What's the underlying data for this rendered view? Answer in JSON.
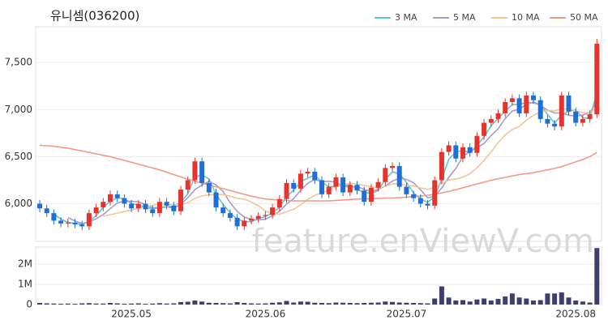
{
  "chart_data": [
    {
      "type": "candlestick",
      "title": "유니셈(036200)",
      "watermark": "feature.enViewV.com",
      "up_color": "#e8332c",
      "down_color": "#1f6fd6",
      "legend": "top-right",
      "grid": true,
      "open": [
        6000,
        5950,
        5900,
        5820,
        5790,
        5800,
        5780,
        5760,
        5900,
        5960,
        6020,
        6100,
        6060,
        6000,
        5950,
        6000,
        5940,
        5900,
        6020,
        5980,
        5920,
        6150,
        6250,
        6450,
        6220,
        6120,
        5960,
        5900,
        5850,
        5760,
        5820,
        5840,
        5870,
        5880,
        5960,
        6050,
        6220,
        6160,
        6320,
        6340,
        6250,
        6100,
        6180,
        6280,
        6120,
        6200,
        6140,
        6020,
        6170,
        6230,
        6380,
        6400,
        6180,
        6100,
        6060,
        6000,
        5980,
        6250,
        6550,
        6620,
        6480,
        6600,
        6540,
        6720,
        6860,
        6900,
        6960,
        7080,
        7120,
        6960,
        7150,
        7100,
        6900,
        6850,
        6820,
        7150,
        6980,
        6860,
        6900,
        6950
      ],
      "high": [
        6040,
        5990,
        5940,
        5860,
        5840,
        5840,
        5820,
        5940,
        6000,
        6060,
        6140,
        6140,
        6100,
        6040,
        6040,
        6040,
        5980,
        6060,
        6060,
        6020,
        6190,
        6290,
        6490,
        6490,
        6260,
        6160,
        6000,
        5940,
        5890,
        5860,
        5880,
        5910,
        5920,
        6000,
        6090,
        6260,
        6260,
        6360,
        6380,
        6380,
        6290,
        6220,
        6320,
        6320,
        6240,
        6240,
        6180,
        6210,
        6270,
        6420,
        6440,
        6440,
        6220,
        6140,
        6100,
        6040,
        6290,
        6590,
        6660,
        6660,
        6640,
        6640,
        6760,
        6900,
        6940,
        7000,
        7120,
        7160,
        7160,
        7190,
        7190,
        7140,
        6940,
        6890,
        7190,
        7190,
        7020,
        6940,
        6990,
        7750
      ],
      "low": [
        5910,
        5860,
        5780,
        5750,
        5750,
        5740,
        5720,
        5720,
        5860,
        5920,
        5980,
        6020,
        5960,
        5910,
        5910,
        5900,
        5860,
        5860,
        5940,
        5880,
        5880,
        6110,
        6210,
        6180,
        6080,
        5920,
        5860,
        5810,
        5720,
        5720,
        5780,
        5800,
        5830,
        5840,
        5920,
        6010,
        6120,
        6120,
        6280,
        6210,
        6060,
        6060,
        6140,
        6080,
        6080,
        6100,
        5980,
        5980,
        6130,
        6190,
        6340,
        6140,
        6060,
        6020,
        5960,
        5940,
        5940,
        6210,
        6510,
        6440,
        6440,
        6500,
        6500,
        6680,
        6820,
        6860,
        6920,
        7040,
        6920,
        6920,
        7060,
        6860,
        6810,
        6780,
        6780,
        6940,
        6820,
        6820,
        6860,
        6910
      ],
      "close": [
        5950,
        5900,
        5820,
        5790,
        5800,
        5780,
        5760,
        5900,
        5960,
        6020,
        6100,
        6060,
        6000,
        5950,
        6000,
        5940,
        5900,
        6020,
        5980,
        5920,
        6150,
        6250,
        6450,
        6220,
        6120,
        5960,
        5900,
        5850,
        5760,
        5820,
        5840,
        5870,
        5880,
        5960,
        6050,
        6220,
        6160,
        6320,
        6340,
        6250,
        6100,
        6180,
        6280,
        6120,
        6200,
        6140,
        6020,
        6170,
        6230,
        6380,
        6400,
        6180,
        6100,
        6060,
        6000,
        5980,
        6250,
        6550,
        6620,
        6480,
        6600,
        6540,
        6720,
        6860,
        6900,
        6960,
        7080,
        7120,
        6960,
        7150,
        7100,
        6900,
        6850,
        6820,
        7150,
        6980,
        6860,
        6900,
        6950,
        7700
      ],
      "series": [
        {
          "name": "3 MA",
          "color": "#63c6cf",
          "values": [
            null,
            null,
            5890,
            5837,
            5803,
            5790,
            5780,
            5813,
            5873,
            5960,
            6027,
            6060,
            6053,
            6003,
            5983,
            5963,
            5947,
            5953,
            5967,
            5973,
            6017,
            6107,
            6283,
            6307,
            6263,
            6100,
            5993,
            5903,
            5837,
            5810,
            5807,
            5843,
            5863,
            5903,
            5963,
            6077,
            6143,
            6233,
            6273,
            6303,
            6230,
            6177,
            6187,
            6193,
            6200,
            6153,
            6120,
            6110,
            6140,
            6260,
            6337,
            6320,
            6227,
            6113,
            6053,
            6013,
            6077,
            6260,
            6473,
            6550,
            6567,
            6540,
            6620,
            6707,
            6827,
            6907,
            6980,
            7053,
            7053,
            7077,
            7070,
            7050,
            6950,
            6857,
            6940,
            6983,
            6997,
            6913,
            6903,
            7183
          ]
        },
        {
          "name": "5 MA",
          "color": "#a99ad2",
          "values": [
            null,
            null,
            null,
            null,
            5852,
            5818,
            5790,
            5806,
            5840,
            5884,
            5948,
            6008,
            6028,
            6026,
            6022,
            5990,
            5958,
            5962,
            5968,
            5952,
            5994,
            6064,
            6150,
            6198,
            6238,
            6200,
            6130,
            6010,
            5918,
            5858,
            5834,
            5828,
            5834,
            5874,
            5920,
            5996,
            6054,
            6142,
            6218,
            6258,
            6234,
            6238,
            6230,
            6186,
            6176,
            6184,
            6152,
            6130,
            6152,
            6188,
            6240,
            6272,
            6258,
            6224,
            6148,
            6064,
            6078,
            6168,
            6280,
            6376,
            6500,
            6558,
            6592,
            6640,
            6724,
            6796,
            6904,
            6984,
            7004,
            7054,
            7082,
            7046,
            6992,
            6964,
            6964,
            6940,
            6932,
            6942,
            6968,
            7078
          ]
        },
        {
          "name": "10 MA",
          "color": "#f2c794",
          "values": [
            null,
            null,
            null,
            null,
            null,
            null,
            null,
            null,
            null,
            5868,
            5883,
            5899,
            5917,
            5933,
            5953,
            5969,
            5983,
            5995,
            5997,
            5987,
            5992,
            6011,
            6056,
            6083,
            6095,
            6097,
            6097,
            6080,
            6058,
            6048,
            6017,
            5979,
            5922,
            5896,
            5889,
            5915,
            5941,
            5988,
            6046,
            6089,
            6115,
            6146,
            6186,
            6202,
            6217,
            6209,
            6195,
            6180,
            6169,
            6182,
            6212,
            6212,
            6194,
            6188,
            6168,
            6152,
            6175,
            6213,
            6252,
            6262,
            6282,
            6318,
            6380,
            6460,
            6550,
            6648,
            6731,
            6788,
            6822,
            6889,
            6939,
            6975,
            6988,
            6984,
            7009,
            7011,
            6989,
            6967,
            6966,
            7021
          ]
        },
        {
          "name": "50 MA",
          "color": "#f29a88",
          "values": [
            6620,
            6615,
            6610,
            6600,
            6590,
            6575,
            6560,
            6545,
            6530,
            6515,
            6500,
            6480,
            6460,
            6440,
            6420,
            6400,
            6380,
            6360,
            6335,
            6310,
            6285,
            6260,
            6240,
            6220,
            6200,
            6180,
            6160,
            6140,
            6120,
            6100,
            6080,
            6065,
            6050,
            6045,
            6040,
            6035,
            6030,
            6030,
            6030,
            6030,
            6030,
            6030,
            6035,
            6040,
            6045,
            6050,
            6050,
            6055,
            6055,
            6060,
            6060,
            6065,
            6070,
            6075,
            6080,
            6090,
            6100,
            6115,
            6130,
            6150,
            6170,
            6190,
            6210,
            6230,
            6250,
            6265,
            6280,
            6295,
            6310,
            6320,
            6330,
            6345,
            6360,
            6375,
            6395,
            6420,
            6445,
            6470,
            6500,
            6545
          ]
        }
      ],
      "ylim": [
        5600,
        7880
      ],
      "yticks": [
        {
          "value": 6000,
          "label": "6,000"
        },
        {
          "value": 6500,
          "label": "6,500"
        },
        {
          "value": 7000,
          "label": "7,000"
        },
        {
          "value": 7500,
          "label": "7,500"
        }
      ]
    },
    {
      "type": "bar",
      "color": "#3d3f6e",
      "categories": [
        null,
        null,
        null,
        null,
        null,
        null,
        null,
        null,
        null,
        null,
        null,
        null,
        null,
        "2025.05",
        null,
        null,
        null,
        null,
        null,
        null,
        null,
        null,
        null,
        null,
        null,
        null,
        null,
        null,
        null,
        null,
        null,
        null,
        "2025.06",
        null,
        null,
        null,
        null,
        null,
        null,
        null,
        null,
        null,
        null,
        null,
        null,
        null,
        null,
        null,
        null,
        null,
        null,
        null,
        "2025.07",
        null,
        null,
        null,
        null,
        null,
        null,
        null,
        null,
        null,
        null,
        null,
        null,
        null,
        null,
        null,
        null,
        null,
        null,
        null,
        null,
        null,
        null,
        null,
        "2025.08",
        null,
        null,
        null
      ],
      "values": [
        80000,
        60000,
        50000,
        40000,
        50000,
        40000,
        60000,
        70000,
        50000,
        50000,
        80000,
        60000,
        40000,
        50000,
        60000,
        40000,
        50000,
        70000,
        50000,
        60000,
        120000,
        140000,
        200000,
        150000,
        90000,
        80000,
        70000,
        60000,
        120000,
        80000,
        60000,
        50000,
        60000,
        90000,
        110000,
        180000,
        100000,
        150000,
        140000,
        90000,
        80000,
        70000,
        100000,
        90000,
        80000,
        70000,
        80000,
        90000,
        100000,
        150000,
        130000,
        100000,
        90000,
        80000,
        70000,
        60000,
        300000,
        900000,
        350000,
        200000,
        220000,
        150000,
        250000,
        300000,
        200000,
        280000,
        400000,
        550000,
        350000,
        300000,
        200000,
        220000,
        550000,
        550000,
        600000,
        350000,
        200000,
        150000,
        100000,
        2800000
      ],
      "ylim": [
        0,
        2850000
      ],
      "yticks": [
        0,
        {
          "value": 1000000,
          "label": "1M"
        },
        {
          "value": 2000000,
          "label": "2M"
        }
      ]
    }
  ]
}
